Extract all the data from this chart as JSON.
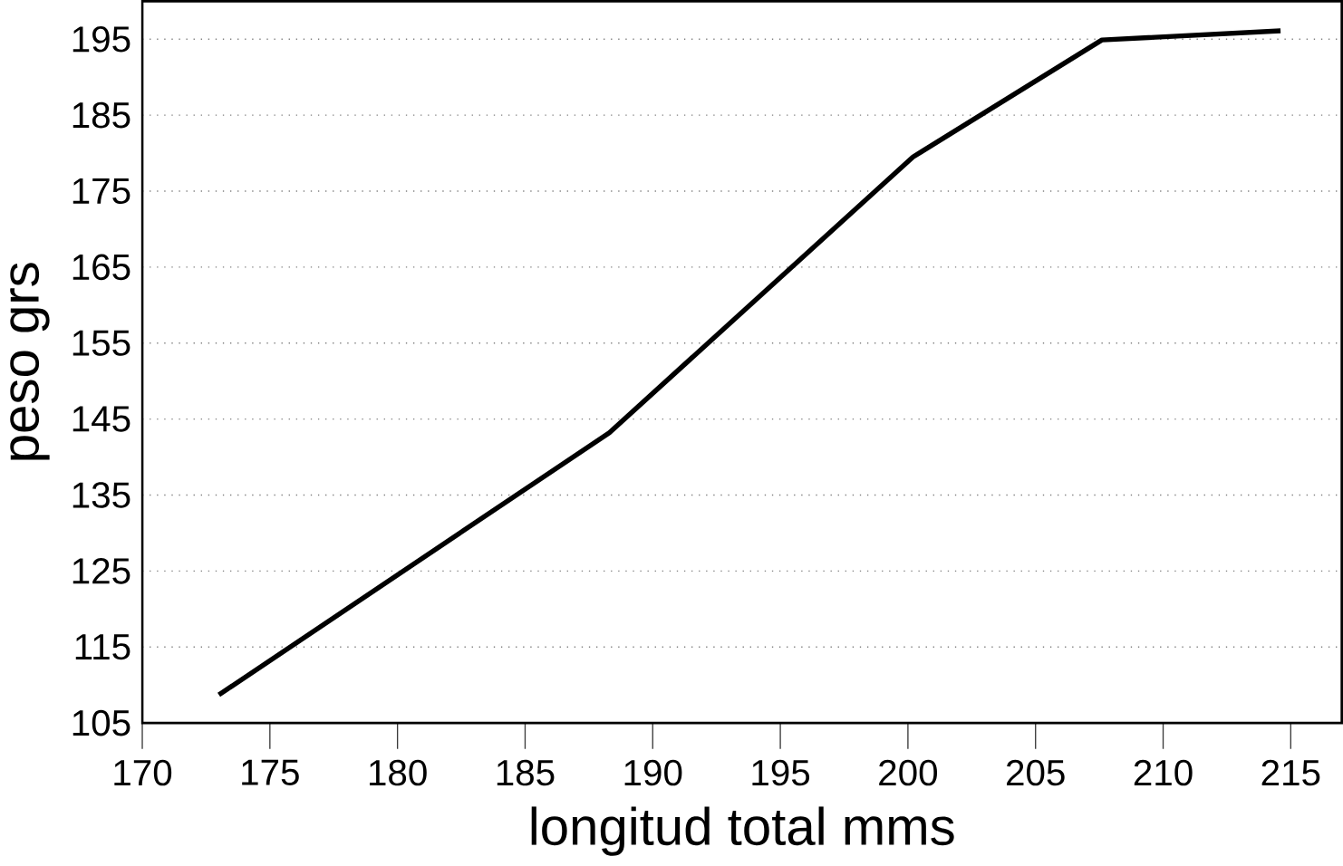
{
  "chart_data": {
    "type": "line",
    "xlabel": "longitud total mms",
    "ylabel": "peso grs",
    "x": [
      173,
      188.3,
      200.2,
      207.6,
      214.6
    ],
    "values": [
      108.7,
      143.2,
      179.5,
      194.9,
      196.1
    ],
    "color": "#000000",
    "xlim": [
      170,
      217
    ],
    "ylim": [
      105,
      200
    ],
    "xticks": [
      170,
      175,
      180,
      185,
      190,
      195,
      200,
      205,
      210,
      215
    ],
    "yticks": [
      105,
      115,
      125,
      135,
      145,
      155,
      165,
      175,
      185,
      195
    ],
    "grid": "y",
    "marker": "none",
    "line_style": "solid"
  }
}
